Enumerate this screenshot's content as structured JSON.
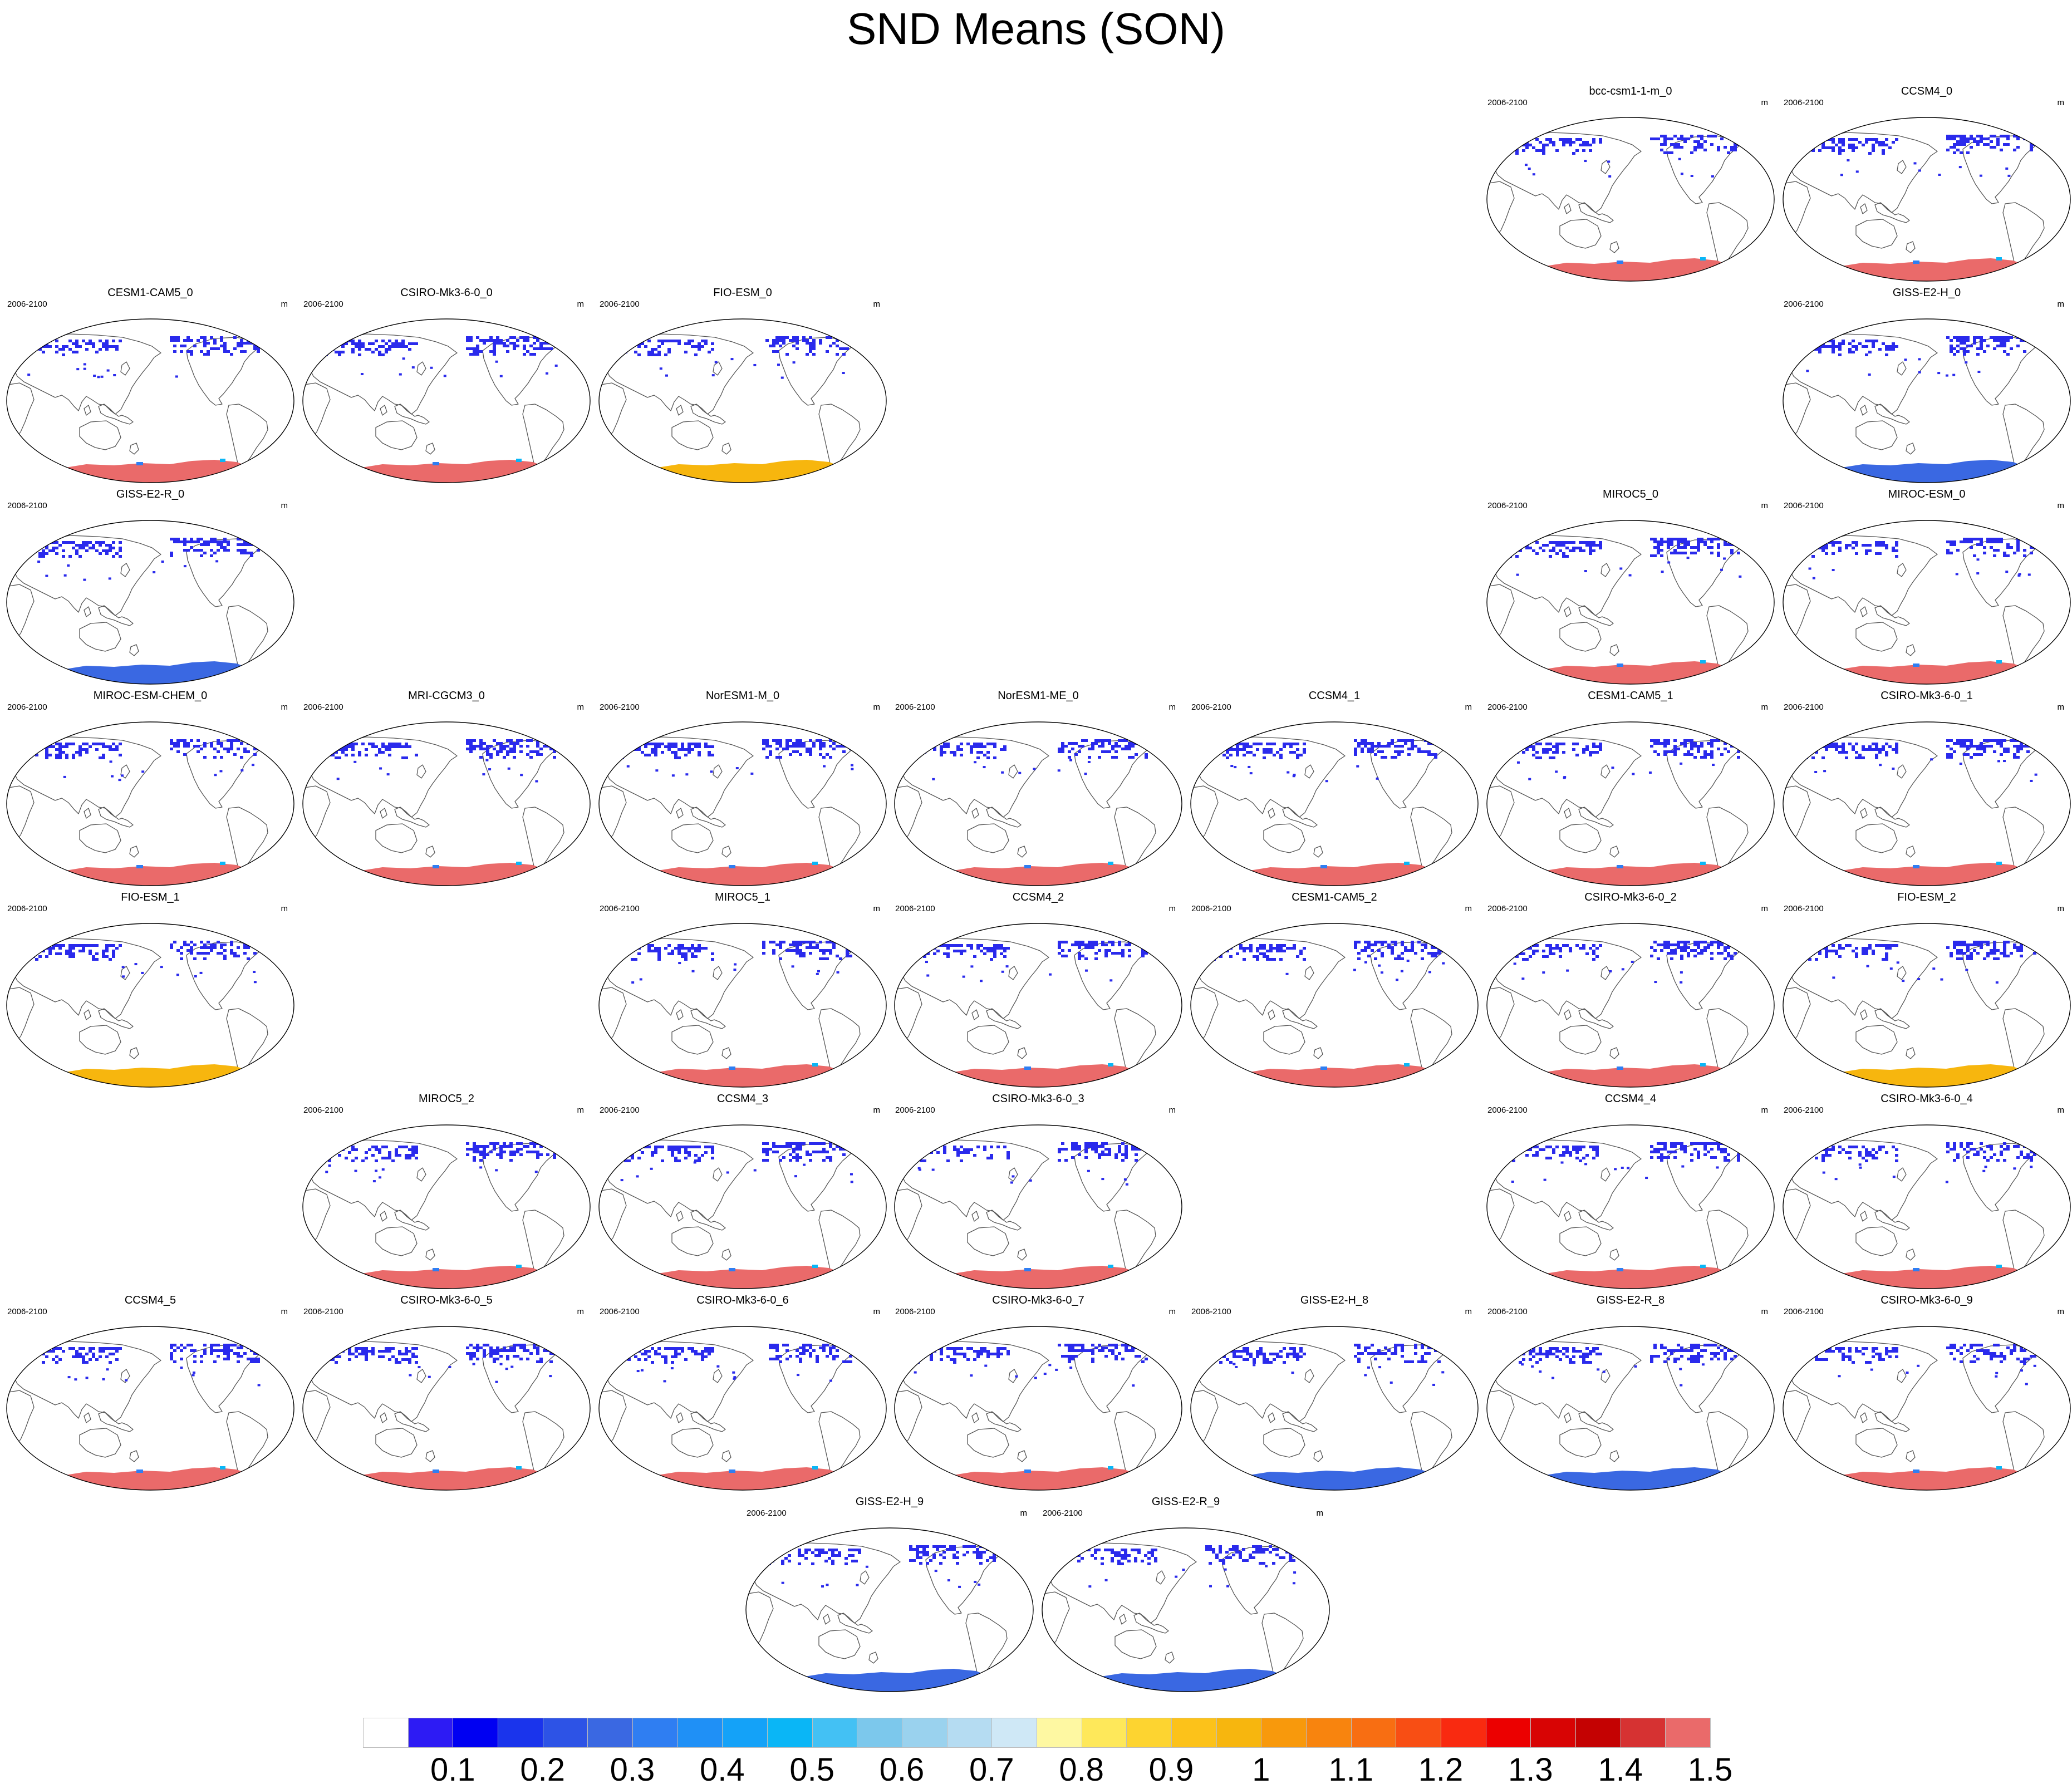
{
  "title": "SND Means (SON)",
  "colors": {
    "coastline": "#555555",
    "snow_blue": "#2a2aec",
    "antarctic_red": "#ea6a6a",
    "antarctic_blue": "#3a68e2",
    "antarctic_orange": "#f7b60e"
  },
  "chart_data": {
    "type": "heatmap",
    "colorbar": {
      "levels": [
        "0.1",
        "0.2",
        "0.3",
        "0.4",
        "0.5",
        "0.6",
        "0.7",
        "0.8",
        "0.9",
        "1",
        "1.1",
        "1.2",
        "1.3",
        "1.4",
        "1.5"
      ],
      "colors": [
        "#ffffff",
        "#2d1bf4",
        "#0000f2",
        "#1a34ec",
        "#2d53e6",
        "#3a68e2",
        "#2f7ef2",
        "#1f90f6",
        "#14a2f8",
        "#0ab6f6",
        "#43c1f4",
        "#7cc8ec",
        "#9ad2ee",
        "#b5dcf2",
        "#cfe8f6",
        "#fef8a2",
        "#fee85a",
        "#fdd430",
        "#fcc21a",
        "#f7b60e",
        "#f8990c",
        "#f8840e",
        "#f86e12",
        "#f84e14",
        "#f92a10",
        "#ec0000",
        "#d80404",
        "#c40202",
        "#d63232",
        "#ea6a6a"
      ]
    },
    "panels": [
      {
        "name": "bcc-csm1-1-m_0",
        "period": "2006-2100",
        "unit": "m",
        "antarctic": "red"
      },
      {
        "name": "CCSM4_0",
        "period": "2006-2100",
        "unit": "m",
        "antarctic": "red"
      },
      {
        "name": "CESM1-CAM5_0",
        "period": "2006-2100",
        "unit": "m",
        "antarctic": "red"
      },
      {
        "name": "CSIRO-Mk3-6-0_0",
        "period": "2006-2100",
        "unit": "m",
        "antarctic": "red"
      },
      {
        "name": "FIO-ESM_0",
        "period": "2006-2100",
        "unit": "m",
        "antarctic": "orange"
      },
      {
        "name": "GISS-E2-H_0",
        "period": "2006-2100",
        "unit": "m",
        "antarctic": "blue"
      },
      {
        "name": "GISS-E2-R_0",
        "period": "2006-2100",
        "unit": "m",
        "antarctic": "blue"
      },
      {
        "name": "MIROC5_0",
        "period": "2006-2100",
        "unit": "m",
        "antarctic": "red"
      },
      {
        "name": "MIROC-ESM_0",
        "period": "2006-2100",
        "unit": "m",
        "antarctic": "red"
      },
      {
        "name": "MIROC-ESM-CHEM_0",
        "period": "2006-2100",
        "unit": "m",
        "antarctic": "red"
      },
      {
        "name": "MRI-CGCM3_0",
        "period": "2006-2100",
        "unit": "m",
        "antarctic": "red"
      },
      {
        "name": "NorESM1-M_0",
        "period": "2006-2100",
        "unit": "m",
        "antarctic": "red"
      },
      {
        "name": "NorESM1-ME_0",
        "period": "2006-2100",
        "unit": "m",
        "antarctic": "red"
      },
      {
        "name": "CCSM4_1",
        "period": "2006-2100",
        "unit": "m",
        "antarctic": "red"
      },
      {
        "name": "CESM1-CAM5_1",
        "period": "2006-2100",
        "unit": "m",
        "antarctic": "red"
      },
      {
        "name": "CSIRO-Mk3-6-0_1",
        "period": "2006-2100",
        "unit": "m",
        "antarctic": "red"
      },
      {
        "name": "FIO-ESM_1",
        "period": "2006-2100",
        "unit": "m",
        "antarctic": "orange"
      },
      {
        "name": "MIROC5_1",
        "period": "2006-2100",
        "unit": "m",
        "antarctic": "red"
      },
      {
        "name": "CCSM4_2",
        "period": "2006-2100",
        "unit": "m",
        "antarctic": "red"
      },
      {
        "name": "CESM1-CAM5_2",
        "period": "2006-2100",
        "unit": "m",
        "antarctic": "red"
      },
      {
        "name": "CSIRO-Mk3-6-0_2",
        "period": "2006-2100",
        "unit": "m",
        "antarctic": "red"
      },
      {
        "name": "FIO-ESM_2",
        "period": "2006-2100",
        "unit": "m",
        "antarctic": "orange"
      },
      {
        "name": "MIROC5_2",
        "period": "2006-2100",
        "unit": "m",
        "antarctic": "red"
      },
      {
        "name": "CCSM4_3",
        "period": "2006-2100",
        "unit": "m",
        "antarctic": "red"
      },
      {
        "name": "CSIRO-Mk3-6-0_3",
        "period": "2006-2100",
        "unit": "m",
        "antarctic": "red"
      },
      {
        "name": "CCSM4_4",
        "period": "2006-2100",
        "unit": "m",
        "antarctic": "red"
      },
      {
        "name": "CSIRO-Mk3-6-0_4",
        "period": "2006-2100",
        "unit": "m",
        "antarctic": "red"
      },
      {
        "name": "CCSM4_5",
        "period": "2006-2100",
        "unit": "m",
        "antarctic": "red"
      },
      {
        "name": "CSIRO-Mk3-6-0_5",
        "period": "2006-2100",
        "unit": "m",
        "antarctic": "red"
      },
      {
        "name": "CSIRO-Mk3-6-0_6",
        "period": "2006-2100",
        "unit": "m",
        "antarctic": "red"
      },
      {
        "name": "CSIRO-Mk3-6-0_7",
        "period": "2006-2100",
        "unit": "m",
        "antarctic": "red"
      },
      {
        "name": "GISS-E2-H_8",
        "period": "2006-2100",
        "unit": "m",
        "antarctic": "blue"
      },
      {
        "name": "GISS-E2-R_8",
        "period": "2006-2100",
        "unit": "m",
        "antarctic": "blue"
      },
      {
        "name": "CSIRO-Mk3-6-0_9",
        "period": "2006-2100",
        "unit": "m",
        "antarctic": "red"
      },
      {
        "name": "GISS-E2-H_9",
        "period": "2006-2100",
        "unit": "m",
        "antarctic": "blue"
      },
      {
        "name": "GISS-E2-R_9",
        "period": "2006-2100",
        "unit": "m",
        "antarctic": "blue"
      }
    ]
  }
}
